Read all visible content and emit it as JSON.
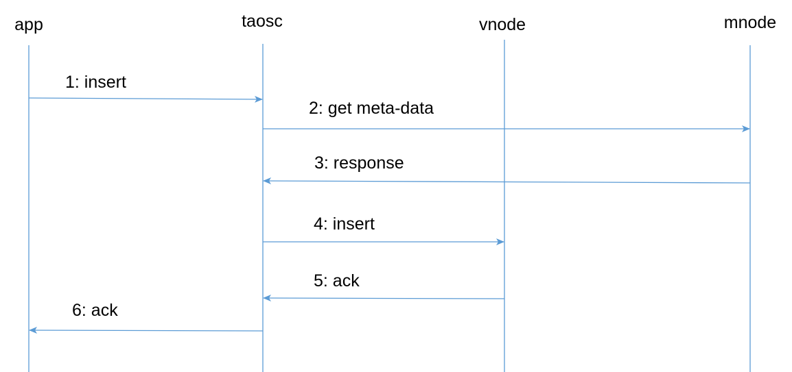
{
  "diagram": {
    "type": "sequence",
    "line_color": "#5b9bd5",
    "participants": [
      {
        "id": "app",
        "label": "app"
      },
      {
        "id": "taosc",
        "label": "taosc"
      },
      {
        "id": "vnode",
        "label": "vnode"
      },
      {
        "id": "mnode",
        "label": "mnode"
      }
    ],
    "messages": [
      {
        "from": "app",
        "to": "taosc",
        "label": "1: insert"
      },
      {
        "from": "taosc",
        "to": "mnode",
        "label": "2: get meta-data"
      },
      {
        "from": "mnode",
        "to": "taosc",
        "label": "3: response"
      },
      {
        "from": "taosc",
        "to": "vnode",
        "label": "4: insert"
      },
      {
        "from": "vnode",
        "to": "taosc",
        "label": "5: ack"
      },
      {
        "from": "taosc",
        "to": "app",
        "label": "6: ack"
      }
    ]
  }
}
